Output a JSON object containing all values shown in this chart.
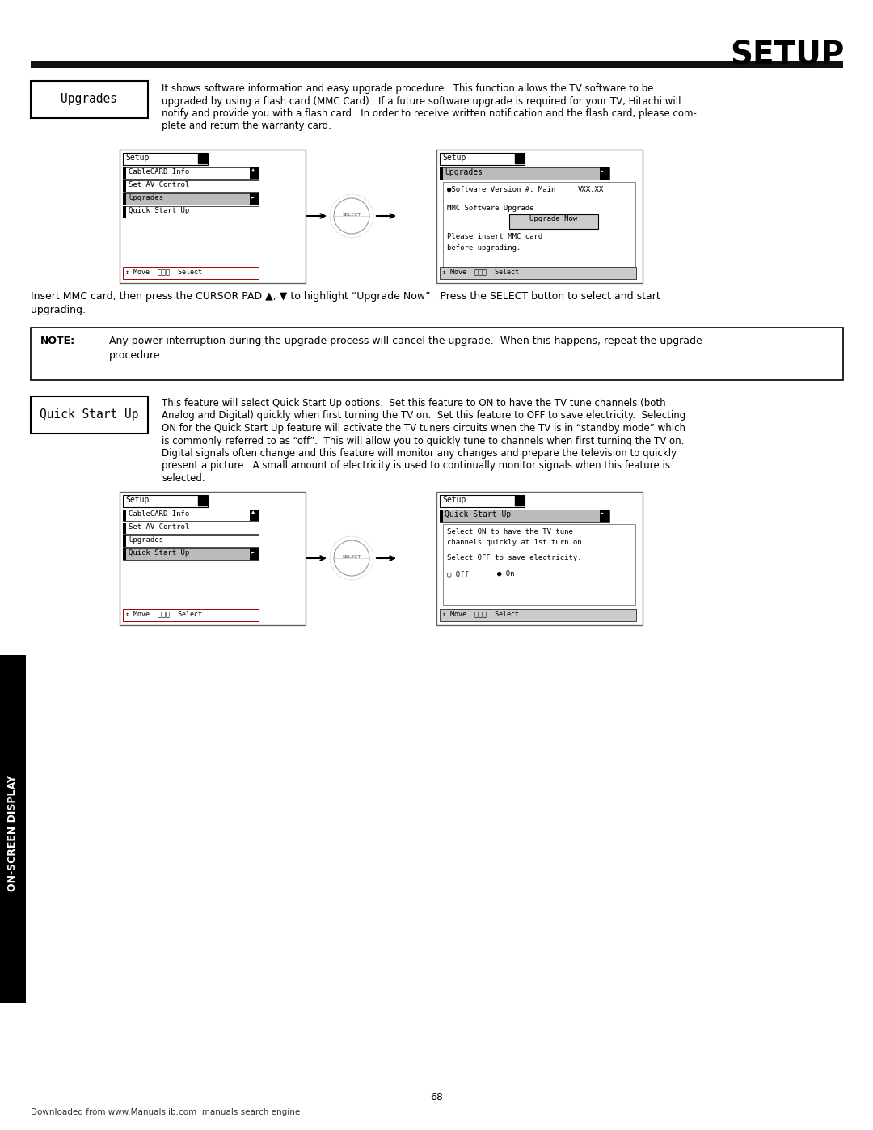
{
  "title": "SETUP",
  "page_number": "68",
  "footer_text": "Downloaded from www.Manualslib.com  manuals search engine",
  "sidebar_text": "ON-SCREEN DISPLAY",
  "upgrades_label": "Upgrades",
  "note_label": "NOTE:",
  "note_text1": "Any power interruption during the upgrade process will cancel the upgrade.  When this happens, repeat the upgrade",
  "note_text2": "procedure.",
  "quickstart_label": "Quick Start Up",
  "background_color": "#ffffff",
  "header_bar_color": "#111111",
  "upgrades_body_lines": [
    "It shows software information and easy upgrade procedure.  This function allows the TV software to be",
    "upgraded by using a flash card (MMC Card).  If a future software upgrade is required for your TV, Hitachi will",
    "notify and provide you with a flash card.  In order to receive written notification and the flash card, please com-",
    "plete and return the warranty card."
  ],
  "mmc_lines": [
    "Insert MMC card, then press the CURSOR PAD ▲, ▼ to highlight “Upgrade Now”.  Press the SELECT button to select and start",
    "upgrading."
  ],
  "qs_body_lines": [
    "This feature will select Quick Start Up options.  Set this feature to ON to have the TV tune channels (both",
    "Analog and Digital) quickly when first turning the TV on.  Set this feature to OFF to save electricity.  Selecting",
    "ON for the Quick Start Up feature will activate the TV tuners circuits when the TV is in “standby mode” which",
    "is commonly referred to as “off”.  This will allow you to quickly tune to channels when first turning the TV on.",
    "Digital signals often change and this feature will monitor any changes and prepare the television to quickly",
    "present a picture.  A small amount of electricity is used to continually monitor signals when this feature is",
    "selected."
  ]
}
